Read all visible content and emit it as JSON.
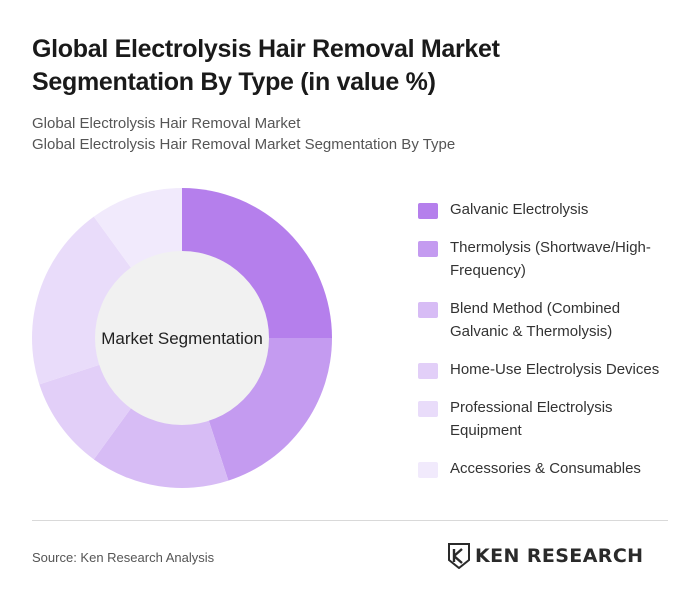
{
  "header": {
    "title": "Global Electrolysis Hair Removal Market Segmentation By Type (in value %)",
    "subtitle_line1": "Global Electrolysis Hair Removal Market",
    "subtitle_line2": "Global Electrolysis Hair Removal Market Segmentation By Type"
  },
  "chart_data": {
    "type": "pie",
    "center_label": "Market Segmentation",
    "categories": [
      "Galvanic Electrolysis",
      "Thermolysis (Shortwave/High-Frequency)",
      "Blend Method (Combined Galvanic & Thermolysis)",
      "Home-Use Electrolysis Devices",
      "Professional Electrolysis Equipment",
      "Accessories & Consumables"
    ],
    "values": [
      25,
      20,
      15,
      10,
      20,
      10
    ],
    "colors": [
      "#b57fec",
      "#c49bf0",
      "#d7bcf5",
      "#e2cff8",
      "#e9dcfa",
      "#f1eafc"
    ],
    "legend_position": "right"
  },
  "footer": {
    "source": "Source: Ken Research Analysis",
    "logo_text": "KEN RESEARCH"
  }
}
